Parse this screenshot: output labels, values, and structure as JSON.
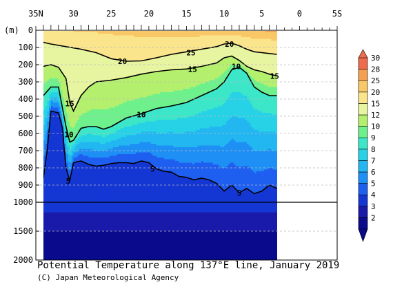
{
  "chart_data": {
    "type": "heatmap",
    "title": "Potential Temperature along 137°E line, January 2019",
    "credit": "(C) Japan Meteorological Agency",
    "ylabel": "(m)",
    "x_ticks": [
      "35N",
      "30",
      "25",
      "20",
      "15",
      "10",
      "5",
      "0",
      "5S"
    ],
    "x_tick_values": [
      35,
      30,
      25,
      20,
      15,
      10,
      5,
      0,
      -5
    ],
    "y_ticks_upper": [
      0,
      100,
      200,
      300,
      400,
      500,
      600,
      700,
      800,
      900,
      1000
    ],
    "y_ticks_lower": [
      1000,
      1500,
      2000
    ],
    "ylim": [
      0,
      2000
    ],
    "xlim_deg": [
      35,
      -5
    ],
    "data_lat_range": [
      34,
      3
    ],
    "colorbar_levels": [
      2,
      3,
      4,
      5,
      6,
      7,
      8,
      9,
      10,
      12,
      15,
      20,
      25,
      28,
      30
    ],
    "colorbar_colors": [
      "#0a0a8c",
      "#1a1aaa",
      "#1437d4",
      "#1e5ff0",
      "#1e90f5",
      "#22b7f0",
      "#27d2e6",
      "#3ce6c8",
      "#6ef08c",
      "#b4f06e",
      "#e8f5a0",
      "#fbe58c",
      "#f8c866",
      "#f5a050",
      "#ee6b4e"
    ],
    "colorbar_labels": [
      "30",
      "28",
      "25",
      "20",
      "15",
      "12",
      "10",
      "9",
      "8",
      "7",
      "6",
      "5",
      "4",
      "3",
      "2"
    ],
    "contour_labels": [
      {
        "text": "20",
        "lat": 23.5,
        "depth": 180
      },
      {
        "text": "25",
        "lat": 14.4,
        "depth": 130
      },
      {
        "text": "20",
        "lat": 9.3,
        "depth": 80
      },
      {
        "text": "15",
        "lat": 14.2,
        "depth": 225
      },
      {
        "text": "10",
        "lat": 8.4,
        "depth": 210
      },
      {
        "text": "15",
        "lat": 3.3,
        "depth": 265
      },
      {
        "text": "15",
        "lat": 30.5,
        "depth": 425
      },
      {
        "text": "10",
        "lat": 21.0,
        "depth": 490
      },
      {
        "text": "10",
        "lat": 30.6,
        "depth": 605
      },
      {
        "text": "5",
        "lat": 19.5,
        "depth": 805
      },
      {
        "text": "5",
        "lat": 30.7,
        "depth": 875
      },
      {
        "text": "5",
        "lat": 8.0,
        "depth": 945
      }
    ],
    "isotherms": [
      {
        "level": 20,
        "points": [
          [
            34,
            70
          ],
          [
            33,
            80
          ],
          [
            31,
            95
          ],
          [
            29,
            110
          ],
          [
            27,
            130
          ],
          [
            25,
            165
          ],
          [
            23,
            180
          ],
          [
            21,
            178
          ],
          [
            19,
            160
          ],
          [
            17,
            140
          ],
          [
            15,
            125
          ],
          [
            13,
            110
          ],
          [
            11,
            95
          ],
          [
            10,
            80
          ],
          [
            9,
            75
          ],
          [
            8,
            90
          ],
          [
            7,
            110
          ],
          [
            6,
            125
          ],
          [
            5,
            130
          ],
          [
            4,
            135
          ],
          [
            3,
            140
          ]
        ]
      },
      {
        "level": 15,
        "points": [
          [
            34,
            210
          ],
          [
            33,
            200
          ],
          [
            32,
            215
          ],
          [
            31,
            280
          ],
          [
            30.5,
            420
          ],
          [
            30,
            470
          ],
          [
            29,
            380
          ],
          [
            28,
            330
          ],
          [
            27,
            300
          ],
          [
            25,
            290
          ],
          [
            23,
            275
          ],
          [
            21,
            255
          ],
          [
            19,
            240
          ],
          [
            17,
            230
          ],
          [
            15,
            225
          ],
          [
            13,
            210
          ],
          [
            11,
            190
          ],
          [
            10,
            160
          ],
          [
            9,
            150
          ],
          [
            8,
            175
          ],
          [
            7,
            210
          ],
          [
            6,
            230
          ],
          [
            5,
            240
          ],
          [
            4,
            255
          ],
          [
            3,
            265
          ]
        ]
      },
      {
        "level": 10,
        "points": [
          [
            34,
            380
          ],
          [
            33,
            330
          ],
          [
            32,
            330
          ],
          [
            31,
            560
          ],
          [
            30.5,
            650
          ],
          [
            30,
            640
          ],
          [
            29,
            570
          ],
          [
            28,
            560
          ],
          [
            27,
            560
          ],
          [
            26,
            575
          ],
          [
            25,
            560
          ],
          [
            23,
            510
          ],
          [
            21,
            485
          ],
          [
            19,
            455
          ],
          [
            17,
            440
          ],
          [
            15,
            420
          ],
          [
            13,
            380
          ],
          [
            11,
            340
          ],
          [
            10,
            300
          ],
          [
            9,
            230
          ],
          [
            8,
            215
          ],
          [
            7,
            250
          ],
          [
            6,
            330
          ],
          [
            5,
            360
          ],
          [
            4,
            380
          ],
          [
            3,
            380
          ]
        ]
      },
      {
        "level": 5,
        "points": [
          [
            34,
            860
          ],
          [
            33.5,
            700
          ],
          [
            33,
            470
          ],
          [
            32,
            480
          ],
          [
            31.5,
            560
          ],
          [
            31,
            800
          ],
          [
            30.5,
            875
          ],
          [
            30,
            770
          ],
          [
            29,
            760
          ],
          [
            28,
            780
          ],
          [
            27,
            790
          ],
          [
            26,
            785
          ],
          [
            25,
            775
          ],
          [
            24,
            770
          ],
          [
            23,
            770
          ],
          [
            22,
            775
          ],
          [
            21,
            760
          ],
          [
            20,
            770
          ],
          [
            19,
            805
          ],
          [
            18,
            820
          ],
          [
            17,
            825
          ],
          [
            16,
            850
          ],
          [
            15,
            855
          ],
          [
            14,
            870
          ],
          [
            13,
            860
          ],
          [
            12,
            870
          ],
          [
            11,
            890
          ],
          [
            10,
            935
          ],
          [
            9,
            900
          ],
          [
            8,
            945
          ],
          [
            7,
            920
          ],
          [
            6,
            950
          ],
          [
            5,
            935
          ],
          [
            4,
            900
          ],
          [
            3,
            920
          ]
        ]
      }
    ]
  }
}
